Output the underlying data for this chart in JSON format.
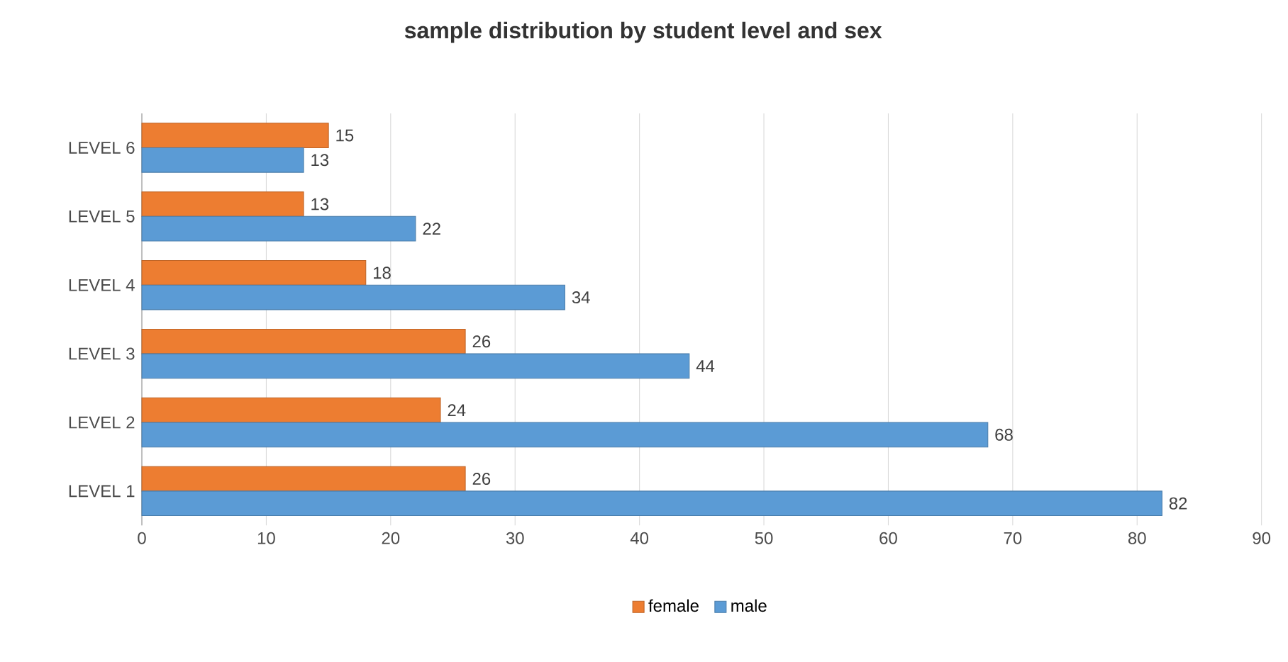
{
  "chart_data": {
    "type": "bar",
    "orientation": "horizontal",
    "title": "sample distribution by student level and sex",
    "categories": [
      "LEVEL 6",
      "LEVEL 5",
      "LEVEL 4",
      "LEVEL 3",
      "LEVEL 2",
      "LEVEL 1"
    ],
    "series": [
      {
        "name": "female",
        "color": "#ed7d31",
        "values": [
          15,
          13,
          18,
          26,
          24,
          26
        ]
      },
      {
        "name": "male",
        "color": "#5b9bd5",
        "values": [
          13,
          22,
          34,
          44,
          68,
          82
        ]
      }
    ],
    "xlim": [
      0,
      90
    ],
    "xticks": [
      0,
      10,
      20,
      30,
      40,
      50,
      60,
      70,
      80,
      90
    ],
    "grid": "x",
    "legend": "bottom",
    "data_labels": true
  }
}
